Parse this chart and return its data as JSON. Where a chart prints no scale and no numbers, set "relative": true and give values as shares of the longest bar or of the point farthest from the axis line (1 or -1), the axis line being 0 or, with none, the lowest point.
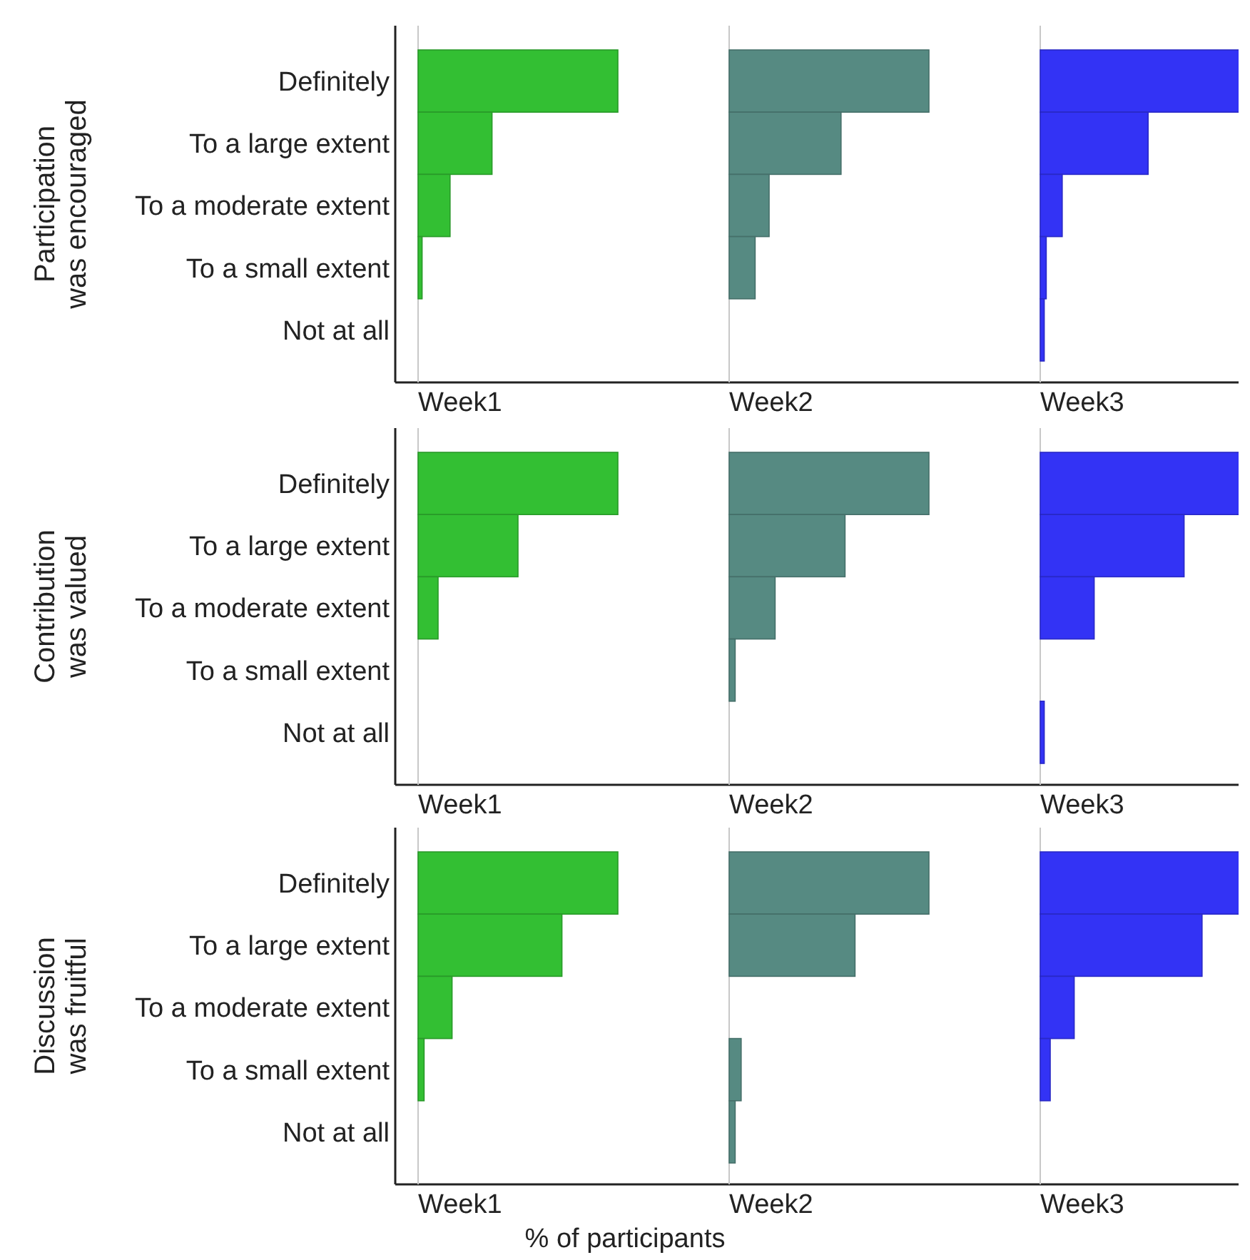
{
  "chart_data": [
    {
      "type": "bar",
      "orientation": "horizontal",
      "relative": true,
      "ylabel": "Participation was encouraged",
      "xlabel": "Week1",
      "tick_labels": "y",
      "categories": [
        "Definitely",
        "To a large extent",
        "To a moderate extent",
        "To a small extent",
        "Not at all"
      ],
      "values": [
        1,
        0.37,
        0.16,
        0.02,
        0
      ],
      "color": "#33bf33"
    },
    {
      "type": "bar",
      "orientation": "horizontal",
      "relative": true,
      "xlabel": "Week2",
      "tick_labels": false,
      "categories": [
        "Definitely",
        "To a large extent",
        "To a moderate extent",
        "To a small extent",
        "Not at all"
      ],
      "values": [
        1,
        0.56,
        0.2,
        0.13,
        0
      ],
      "color": "#568a82"
    },
    {
      "type": "bar",
      "orientation": "horizontal",
      "relative": true,
      "xlabel": "Week3",
      "tick_labels": false,
      "categories": [
        "Definitely",
        "To a large extent",
        "To a moderate extent",
        "To a small extent",
        "Not at all"
      ],
      "values": [
        1,
        0.54,
        0.11,
        0.03,
        0.02
      ],
      "color": "#3333f5"
    },
    {
      "type": "bar",
      "orientation": "horizontal",
      "relative": true,
      "ylabel": "Contribution was valued",
      "xlabel": "Week1",
      "tick_labels": "y",
      "categories": [
        "Definitely",
        "To a large extent",
        "To a moderate extent",
        "To a small extent",
        "Not at all"
      ],
      "values": [
        1,
        0.5,
        0.1,
        0,
        0
      ],
      "color": "#33bf33"
    },
    {
      "type": "bar",
      "orientation": "horizontal",
      "relative": true,
      "xlabel": "Week2",
      "tick_labels": false,
      "categories": [
        "Definitely",
        "To a large extent",
        "To a moderate extent",
        "To a small extent",
        "Not at all"
      ],
      "values": [
        1,
        0.58,
        0.23,
        0.03,
        0
      ],
      "color": "#568a82"
    },
    {
      "type": "bar",
      "orientation": "horizontal",
      "relative": true,
      "xlabel": "Week3",
      "tick_labels": false,
      "categories": [
        "Definitely",
        "To a large extent",
        "To a moderate extent",
        "To a small extent",
        "Not at all"
      ],
      "values": [
        1,
        0.72,
        0.27,
        0,
        0.02
      ],
      "color": "#3333f5"
    },
    {
      "type": "bar",
      "orientation": "horizontal",
      "relative": true,
      "ylabel": "Discussion was fruitful",
      "xlabel": "Week1",
      "tick_labels": "y",
      "categories": [
        "Definitely",
        "To a large extent",
        "To a moderate extent",
        "To a small extent",
        "Not at all"
      ],
      "values": [
        1,
        0.72,
        0.17,
        0.03,
        0
      ],
      "color": "#33bf33",
      "annotations": [
        "% of participants"
      ]
    },
    {
      "type": "bar",
      "orientation": "horizontal",
      "relative": true,
      "xlabel": "Week2",
      "tick_labels": false,
      "categories": [
        "Definitely",
        "To a large extent",
        "To a moderate extent",
        "To a small extent",
        "Not at all"
      ],
      "values": [
        1,
        0.63,
        0,
        0.06,
        0.03
      ],
      "color": "#568a82"
    },
    {
      "type": "bar",
      "orientation": "horizontal",
      "relative": true,
      "xlabel": "Week3",
      "tick_labels": false,
      "categories": [
        "Definitely",
        "To a large extent",
        "To a moderate extent",
        "To a small extent",
        "Not at all"
      ],
      "values": [
        1,
        0.81,
        0.17,
        0.05,
        0
      ],
      "color": "#3333f5"
    }
  ]
}
